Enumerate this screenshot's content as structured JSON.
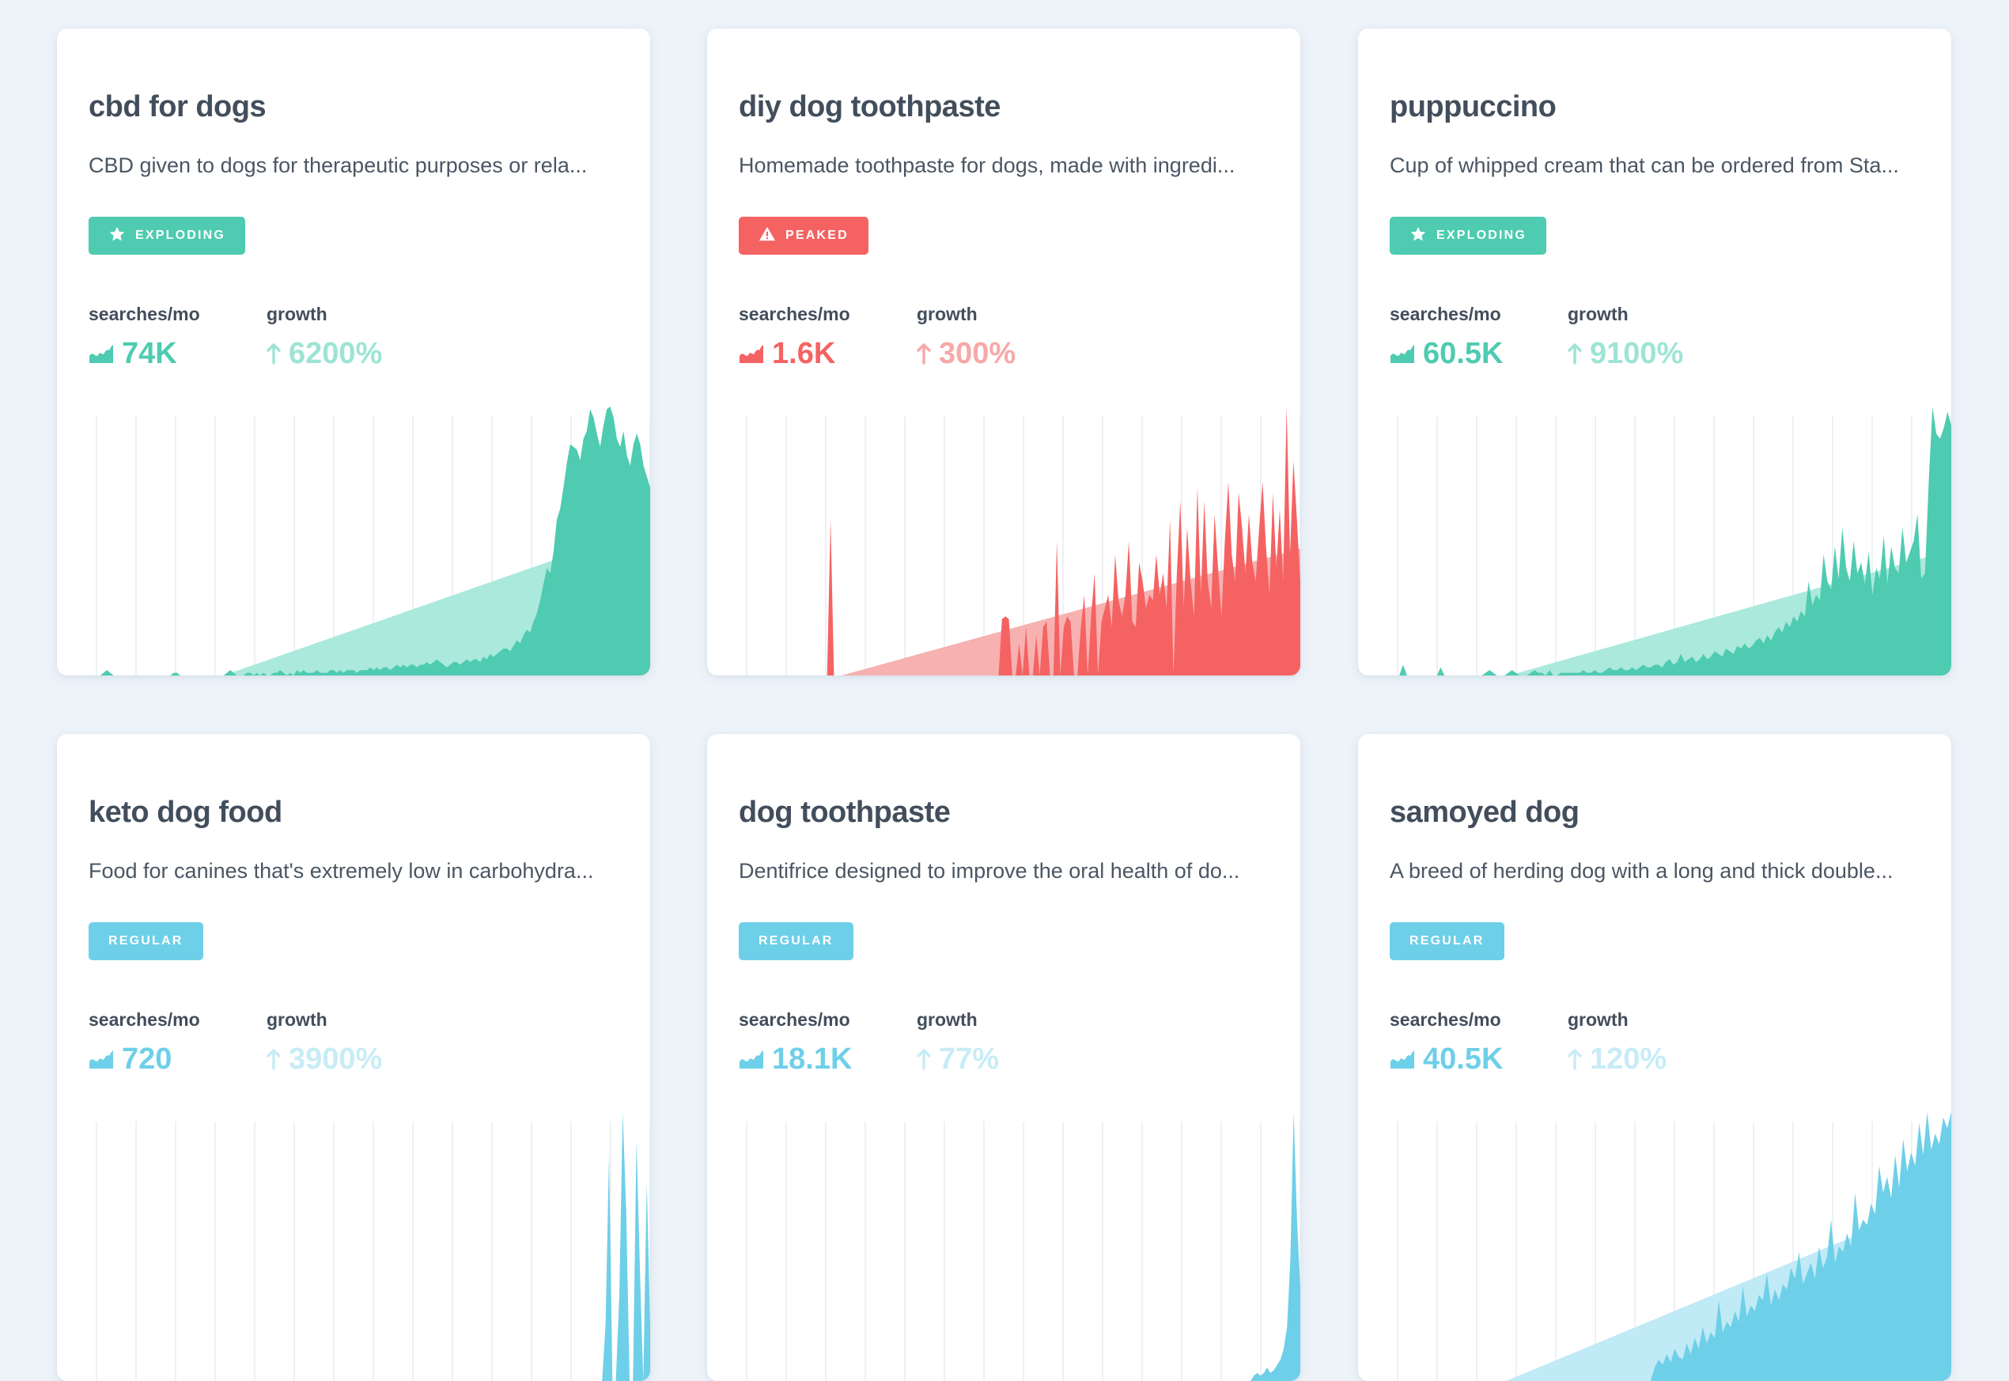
{
  "labels": {
    "searches": "searches/mo",
    "growth": "growth"
  },
  "colors": {
    "exploding": "#4ecbb0",
    "exploding_light": "#aae9dc",
    "exploding_growth": "#9de4d5",
    "peaked": "#f56262",
    "peaked_light": "#f7b1b1",
    "peaked_growth": "#f7a8a8",
    "regular": "#6ecfe8",
    "regular_light": "#c0eaf5",
    "regular_growth": "#c7ecf6"
  },
  "cards": [
    {
      "title": "cbd for dogs",
      "description": "CBD given to dogs for therapeutic purposes or rela...",
      "status": "EXPLODING",
      "status_icon": "star-icon",
      "kind": "exploding",
      "searches": "74K",
      "growth": "6200%",
      "series": [
        0,
        0,
        0,
        0,
        0,
        0,
        0,
        0,
        0,
        0,
        0,
        0,
        0,
        0,
        1,
        2,
        1,
        0,
        0,
        0,
        0,
        0,
        0,
        0,
        0,
        0,
        0,
        0,
        0,
        0,
        0,
        0,
        0,
        0,
        0,
        1,
        1,
        0,
        0,
        0,
        0,
        0,
        0,
        0,
        0,
        0,
        0,
        0,
        0,
        0,
        0,
        1,
        2,
        1,
        0,
        0,
        0,
        1,
        1,
        0,
        1,
        0,
        1,
        0,
        0,
        1,
        1,
        2,
        1,
        0,
        1,
        0,
        2,
        1,
        2,
        1,
        1,
        1,
        2,
        1,
        1,
        1,
        2,
        2,
        1,
        2,
        1,
        2,
        2,
        2,
        1,
        2,
        2,
        2,
        3,
        2,
        3,
        2,
        3,
        3,
        2,
        3,
        4,
        3,
        4,
        3,
        4,
        4,
        3,
        4,
        4,
        5,
        4,
        5,
        6,
        5,
        4,
        3,
        4,
        5,
        5,
        4,
        5,
        6,
        5,
        6,
        6,
        5,
        7,
        6,
        8,
        7,
        8,
        9,
        10,
        10,
        9,
        11,
        13,
        12,
        15,
        17,
        16,
        20,
        23,
        28,
        34,
        40,
        38,
        46,
        58,
        62,
        70,
        79,
        86,
        85,
        84,
        80,
        88,
        91,
        99,
        96,
        90,
        85,
        93,
        99,
        100,
        96,
        88,
        85,
        91,
        82,
        78,
        86,
        90,
        86,
        78,
        74,
        70
      ]
    },
    {
      "title": "diy dog toothpaste",
      "description": "Homemade toothpaste for dogs, made with ingredi...",
      "status": "PEAKED",
      "status_icon": "warning-icon",
      "kind": "peaked",
      "searches": "1.6K",
      "growth": "300%",
      "series": [
        0,
        0,
        0,
        0,
        0,
        0,
        0,
        0,
        0,
        0,
        0,
        0,
        0,
        0,
        0,
        0,
        0,
        0,
        0,
        0,
        0,
        0,
        0,
        0,
        0,
        0,
        0,
        0,
        0,
        0,
        0,
        0,
        0,
        0,
        0,
        0,
        58,
        0,
        0,
        0,
        0,
        0,
        0,
        0,
        0,
        0,
        0,
        0,
        0,
        0,
        0,
        0,
        0,
        0,
        0,
        0,
        0,
        0,
        0,
        0,
        0,
        0,
        0,
        0,
        0,
        0,
        0,
        0,
        0,
        0,
        0,
        0,
        0,
        0,
        0,
        0,
        0,
        0,
        0,
        0,
        0,
        0,
        0,
        0,
        0,
        0,
        21,
        22,
        21,
        0,
        0,
        12,
        0,
        18,
        0,
        0,
        15,
        0,
        18,
        20,
        0,
        0,
        50,
        0,
        18,
        22,
        20,
        0,
        0,
        18,
        30,
        0,
        22,
        38,
        0,
        20,
        25,
        30,
        18,
        45,
        28,
        22,
        30,
        50,
        20,
        18,
        42,
        35,
        25,
        30,
        28,
        45,
        30,
        38,
        25,
        58,
        0,
        38,
        65,
        25,
        55,
        35,
        22,
        70,
        30,
        65,
        35,
        25,
        60,
        40,
        22,
        50,
        72,
        45,
        35,
        68,
        55,
        38,
        60,
        42,
        35,
        55,
        72,
        48,
        30,
        68,
        40,
        62,
        35,
        100,
        45,
        80,
        58,
        35
      ]
    },
    {
      "title": "puppuccino",
      "description": "Cup of whipped cream that can be ordered from Sta...",
      "status": "EXPLODING",
      "status_icon": "star-icon",
      "kind": "exploding",
      "searches": "60.5K",
      "growth": "9100%",
      "series": [
        0,
        0,
        0,
        0,
        0,
        0,
        0,
        0,
        0,
        0,
        0,
        0,
        4,
        0,
        0,
        0,
        0,
        0,
        0,
        0,
        0,
        0,
        3,
        0,
        0,
        0,
        0,
        0,
        0,
        0,
        0,
        0,
        0,
        0,
        1,
        2,
        1,
        0,
        0,
        0,
        1,
        2,
        1,
        0,
        0,
        0,
        1,
        2,
        1,
        1,
        0,
        2,
        0,
        0,
        1,
        1,
        1,
        1,
        1,
        1,
        2,
        1,
        1,
        2,
        1,
        1,
        2,
        3,
        2,
        2,
        3,
        2,
        2,
        3,
        2,
        3,
        4,
        3,
        3,
        4,
        4,
        3,
        5,
        6,
        4,
        5,
        8,
        5,
        6,
        7,
        5,
        6,
        8,
        6,
        7,
        9,
        8,
        7,
        10,
        9,
        8,
        11,
        10,
        12,
        10,
        11,
        13,
        14,
        12,
        15,
        13,
        16,
        18,
        16,
        20,
        18,
        22,
        20,
        24,
        22,
        35,
        26,
        30,
        28,
        45,
        35,
        32,
        48,
        36,
        55,
        40,
        35,
        50,
        38,
        42,
        34,
        46,
        30,
        40,
        36,
        52,
        34,
        48,
        40,
        38,
        55,
        42,
        46,
        50,
        60,
        36,
        38,
        72,
        100,
        90,
        88,
        92,
        98,
        93
      ]
    },
    {
      "title": "keto dog food",
      "description": "Food for canines that's extremely low in carbohydra...",
      "status": "REGULAR",
      "status_icon": "",
      "kind": "regular",
      "searches": "720",
      "growth": "3900%",
      "series": [
        0,
        0,
        0,
        0,
        0,
        0,
        0,
        0,
        0,
        0,
        0,
        0,
        0,
        0,
        0,
        0,
        0,
        0,
        0,
        0,
        0,
        0,
        0,
        0,
        0,
        0,
        0,
        0,
        0,
        0,
        0,
        0,
        0,
        0,
        0,
        0,
        0,
        0,
        0,
        0,
        0,
        0,
        0,
        0,
        0,
        0,
        0,
        0,
        0,
        0,
        0,
        0,
        0,
        0,
        0,
        0,
        0,
        0,
        0,
        0,
        0,
        0,
        0,
        0,
        0,
        0,
        0,
        0,
        0,
        0,
        0,
        0,
        0,
        0,
        0,
        0,
        0,
        0,
        0,
        0,
        0,
        0,
        0,
        0,
        0,
        0,
        0,
        0,
        0,
        0,
        0,
        0,
        0,
        0,
        0,
        0,
        0,
        0,
        0,
        0,
        0,
        0,
        0,
        0,
        0,
        0,
        0,
        0,
        0,
        0,
        0,
        0,
        0,
        0,
        0,
        0,
        0,
        0,
        0,
        0,
        0,
        0,
        0,
        0,
        0,
        0,
        0,
        0,
        0,
        0,
        0,
        0,
        0,
        0,
        0,
        0,
        0,
        0,
        0,
        0,
        0,
        0,
        0,
        0,
        0,
        0,
        0,
        0,
        0,
        0,
        0,
        0,
        0,
        0,
        0,
        0,
        0,
        0,
        0,
        0,
        20,
        80,
        0,
        0,
        30,
        95,
        60,
        0,
        0,
        85,
        40,
        0,
        70,
        20
      ]
    },
    {
      "title": "dog toothpaste",
      "description": "Dentifrice designed to improve the oral health of do...",
      "status": "REGULAR",
      "status_icon": "",
      "kind": "regular",
      "searches": "18.1K",
      "growth": "77%",
      "series": [
        0,
        0,
        0,
        0,
        0,
        0,
        0,
        0,
        0,
        0,
        0,
        0,
        0,
        0,
        0,
        0,
        0,
        0,
        0,
        0,
        0,
        0,
        0,
        0,
        0,
        0,
        0,
        0,
        0,
        0,
        0,
        0,
        0,
        0,
        0,
        0,
        0,
        0,
        0,
        0,
        0,
        0,
        0,
        0,
        0,
        0,
        0,
        0,
        0,
        0,
        0,
        0,
        0,
        0,
        0,
        0,
        0,
        0,
        0,
        0,
        0,
        0,
        0,
        0,
        0,
        0,
        0,
        0,
        0,
        0,
        0,
        0,
        0,
        0,
        0,
        0,
        0,
        0,
        0,
        0,
        0,
        0,
        0,
        0,
        0,
        0,
        0,
        0,
        0,
        0,
        0,
        0,
        0,
        0,
        0,
        0,
        0,
        0,
        0,
        0,
        0,
        0,
        0,
        0,
        0,
        0,
        0,
        0,
        0,
        0,
        0,
        0,
        0,
        0,
        0,
        0,
        0,
        0,
        0,
        0,
        0,
        0,
        0,
        0,
        0,
        0,
        0,
        0,
        0,
        0,
        0,
        0,
        0,
        0,
        0,
        0,
        0,
        0,
        0,
        0,
        0,
        0,
        0,
        0,
        0,
        0,
        0,
        0,
        0,
        0,
        0,
        0,
        0,
        0,
        0,
        0,
        0,
        0,
        0,
        0,
        0,
        0,
        0,
        0,
        0,
        2,
        3,
        2,
        3,
        5,
        3,
        4,
        6,
        8,
        12,
        20,
        45,
        100,
        60,
        35
      ]
    },
    {
      "title": "samoyed dog",
      "description": "A breed of herding dog with a long and thick double...",
      "status": "REGULAR",
      "status_icon": "",
      "kind": "regular",
      "searches": "40.5K",
      "growth": "120%",
      "series": [
        0,
        0,
        0,
        0,
        0,
        0,
        0,
        0,
        0,
        0,
        0,
        0,
        0,
        0,
        0,
        0,
        0,
        0,
        0,
        0,
        0,
        0,
        0,
        0,
        0,
        0,
        0,
        0,
        0,
        0,
        0,
        0,
        0,
        0,
        0,
        0,
        0,
        0,
        0,
        0,
        0,
        0,
        0,
        0,
        0,
        0,
        0,
        0,
        0,
        0,
        0,
        0,
        0,
        0,
        0,
        0,
        0,
        0,
        0,
        0,
        0,
        0,
        0,
        0,
        0,
        0,
        0,
        0,
        0,
        0,
        0,
        0,
        0,
        0,
        5,
        8,
        6,
        10,
        7,
        12,
        9,
        8,
        14,
        10,
        16,
        12,
        20,
        14,
        18,
        16,
        30,
        18,
        22,
        20,
        26,
        22,
        35,
        24,
        28,
        26,
        32,
        30,
        40,
        28,
        34,
        30,
        36,
        34,
        42,
        38,
        48,
        36,
        40,
        44,
        38,
        50,
        42,
        46,
        60,
        44,
        50,
        48,
        55,
        50,
        70,
        56,
        60,
        58,
        66,
        62,
        80,
        70,
        76,
        68,
        84,
        72,
        90,
        78,
        85,
        80,
        96,
        84,
        100,
        86,
        92,
        88,
        98,
        94,
        100
      ]
    }
  ]
}
